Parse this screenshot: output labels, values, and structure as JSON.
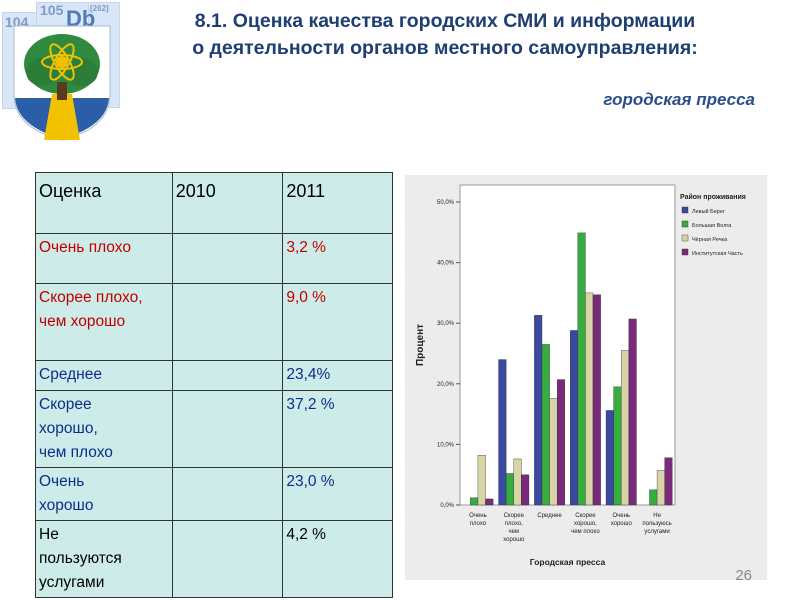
{
  "logo": {
    "tiles": [
      "104",
      "105",
      "Db",
      "[262]"
    ]
  },
  "title": {
    "line1": "8.1. Оценка качества городских СМИ и информации",
    "line2": "о деятельности органов местного самоуправления:",
    "subtitle": "городская пресса"
  },
  "table": {
    "headers": [
      "Оценка",
      "2010",
      "2011"
    ],
    "rows": [
      {
        "label": "Очень плохо",
        "v2010": "",
        "v2011": "3,2 %",
        "color": "#c00000"
      },
      {
        "label": "Скорее плохо,\nчем хорошо",
        "v2010": "",
        "v2011": "9,0 %",
        "color": "#c00000"
      },
      {
        "label": "Среднее",
        "v2010": "",
        "v2011": "23,4%",
        "color": "#0d2d8c"
      },
      {
        "label": "Скорее\nхорошо,\nчем плохо",
        "v2010": "",
        "v2011": "37,2 %",
        "color": "#0d2d8c"
      },
      {
        "label": "Очень\nхорошо",
        "v2010": "",
        "v2011": "23,0 %",
        "color": "#0d2d8c"
      },
      {
        "label": "Не\nпользуются\nуслугами",
        "v2010": "",
        "v2011": "4,2 %",
        "color": "#000000"
      }
    ]
  },
  "chart_data": {
    "type": "bar",
    "xlabel": "Городская пресса",
    "ylabel": "Процент",
    "ylim": [
      0,
      50
    ],
    "yticks": [
      "0,0%",
      "10,0%",
      "20,0%",
      "30,0%",
      "40,0%",
      "50,0%"
    ],
    "categories": [
      "Очень\nплохо",
      "Скорее\nплохо,\nчем\nхорошо",
      "Среднее",
      "Скорее\nхорошо,\nчем плохо",
      "Очень\nхорошо",
      "Не\nпользуюсь\nуслугами"
    ],
    "legend_title": "Район проживания",
    "legend_position": "top-right",
    "series": [
      {
        "name": "Левый Берег",
        "color": "#3a4aa0",
        "values": [
          0.0,
          24.0,
          31.3,
          28.8,
          15.6,
          0.0
        ]
      },
      {
        "name": "Большая Волга",
        "color": "#36ad3f",
        "values": [
          1.2,
          5.2,
          26.5,
          44.9,
          19.5,
          2.5
        ]
      },
      {
        "name": "Чёрная Речка",
        "color": "#d8d4a6",
        "values": [
          8.2,
          7.6,
          17.6,
          35.0,
          25.5,
          5.7
        ]
      },
      {
        "name": "Институтская Часть",
        "color": "#7a2a7a",
        "values": [
          1.0,
          5.0,
          20.7,
          34.7,
          30.7,
          7.8
        ]
      }
    ],
    "grid": false
  },
  "footer": {
    "page": "26"
  }
}
